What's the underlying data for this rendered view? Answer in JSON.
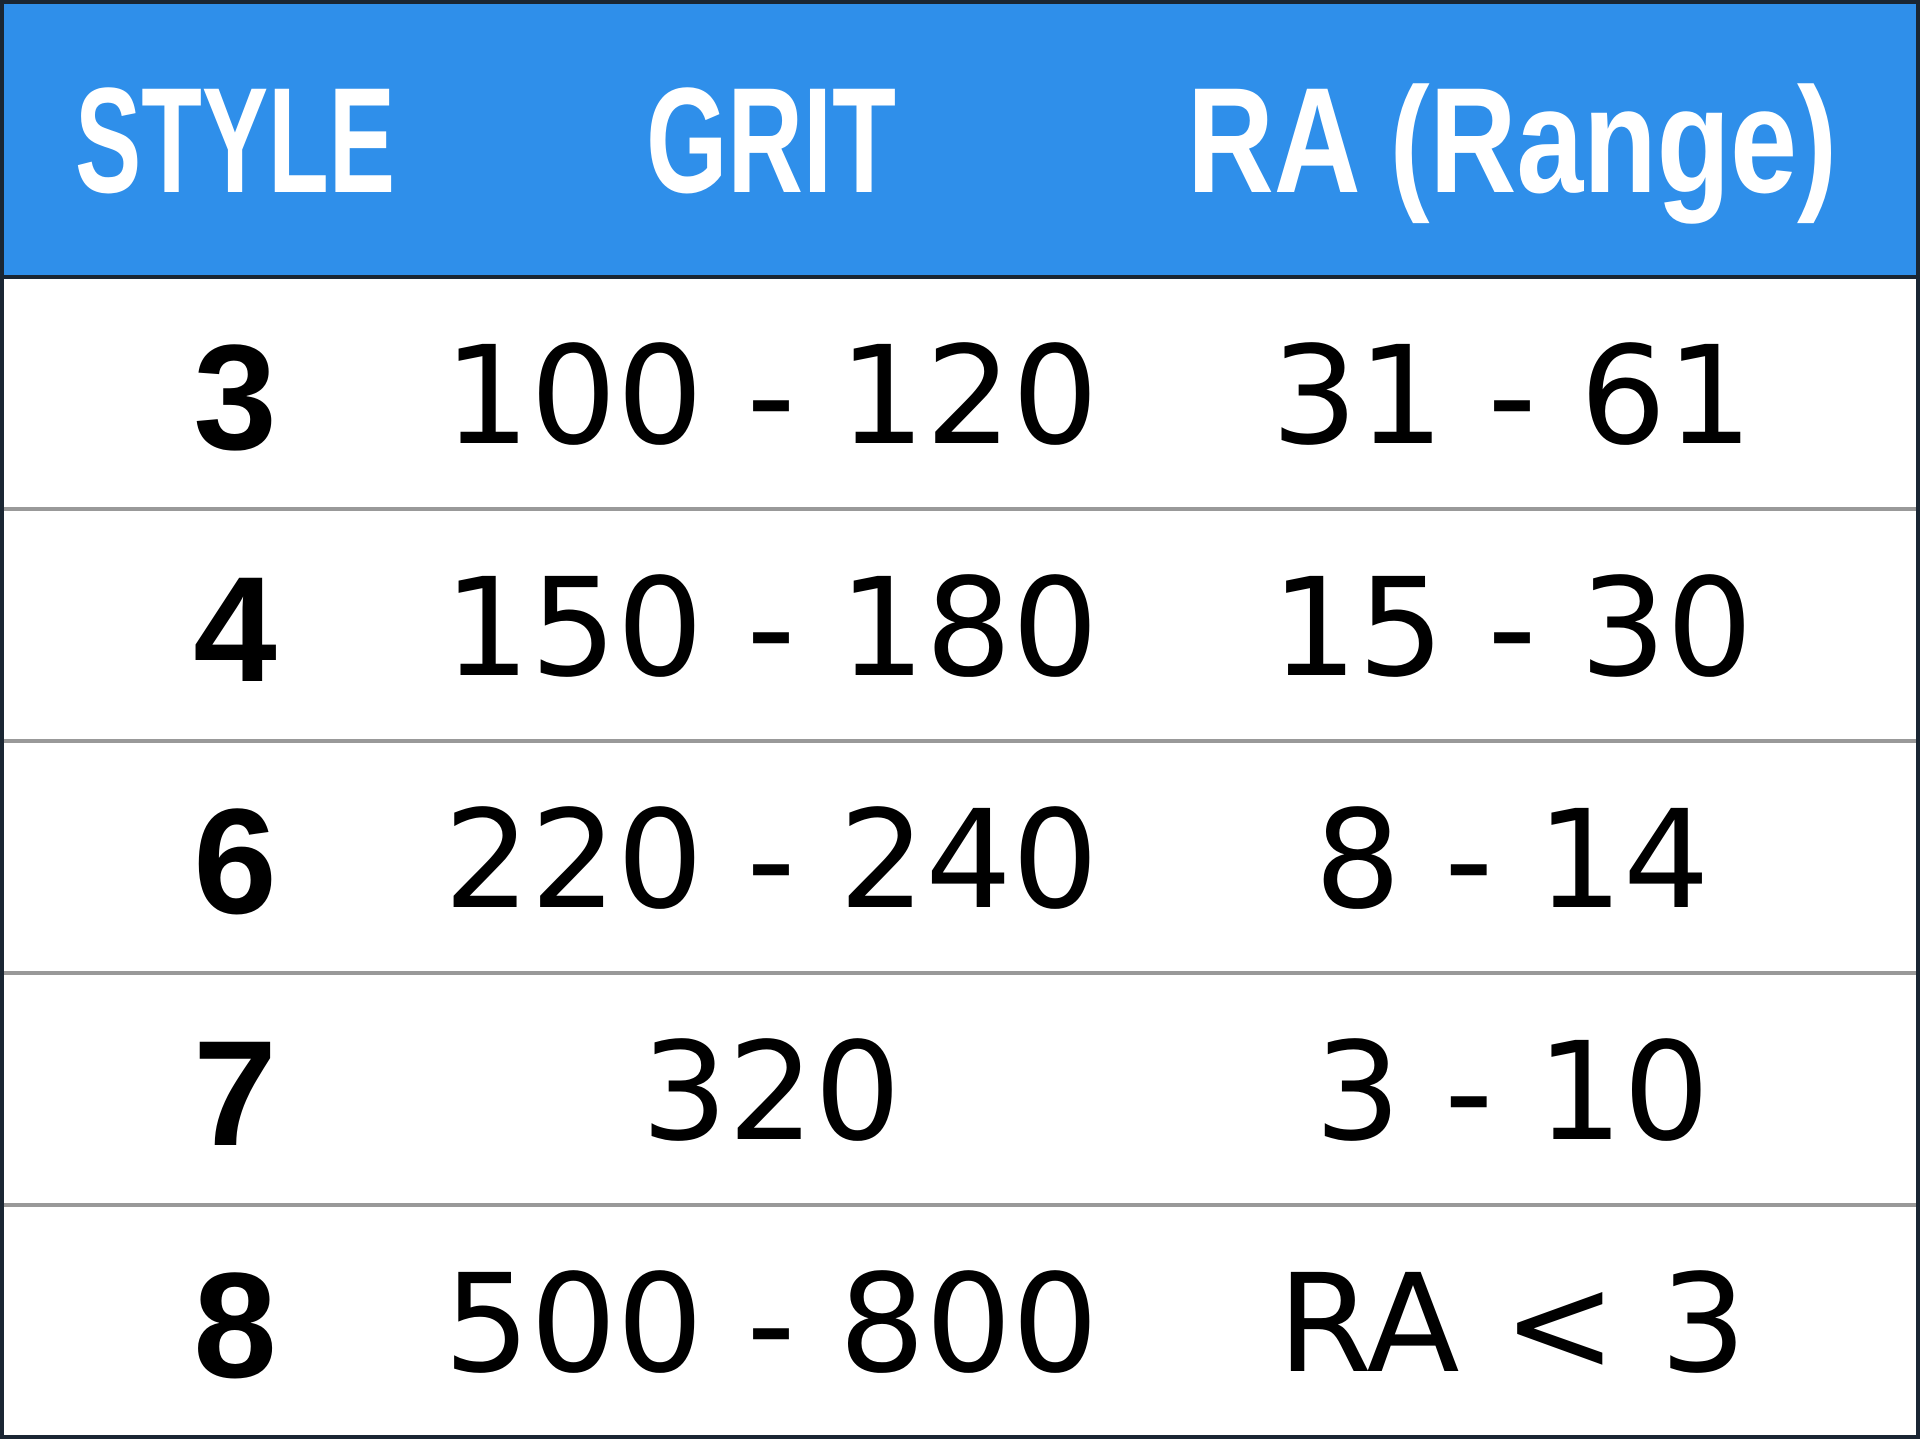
{
  "table": {
    "header": [
      "STYLE",
      "GRIT",
      "RA (Range)"
    ],
    "rows": [
      [
        "3",
        "100 - 120",
        "31 - 61"
      ],
      [
        "4",
        "150 - 180",
        "15 - 30"
      ],
      [
        "6",
        "220 - 240",
        "8 - 14"
      ],
      [
        "7",
        "320",
        "3 - 10"
      ],
      [
        "8",
        "500 - 800",
        "RA < 3"
      ]
    ]
  }
}
